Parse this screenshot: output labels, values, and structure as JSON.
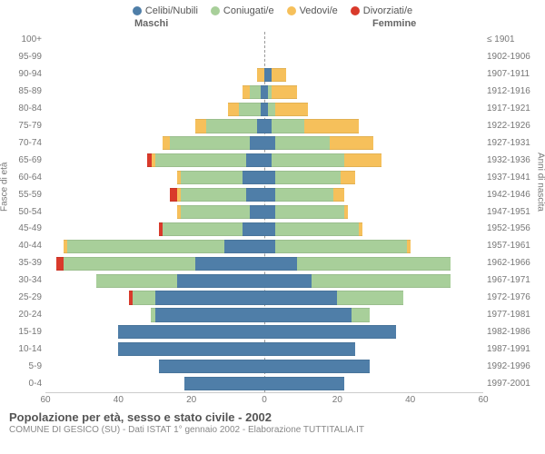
{
  "type": "population_pyramid",
  "legend": [
    {
      "label": "Celibi/Nubili",
      "color": "#4f7ea8"
    },
    {
      "label": "Coniugati/e",
      "color": "#a8cf9a"
    },
    {
      "label": "Vedovi/e",
      "color": "#f6c05b"
    },
    {
      "label": "Divorziati/e",
      "color": "#d93a2b"
    }
  ],
  "headers": {
    "male": "Maschi",
    "female": "Femmine"
  },
  "axis_labels": {
    "left": "Fasce di età",
    "right": "Anni di nascita"
  },
  "x_axis": {
    "max": 60,
    "ticks": [
      60,
      40,
      20,
      0,
      20,
      40,
      60
    ]
  },
  "footer": {
    "title": "Popolazione per età, sesso e stato civile - 2002",
    "subtitle": "COMUNE DI GESICO (SU) - Dati ISTAT 1° gennaio 2002 - Elaborazione TUTTITALIA.IT"
  },
  "style": {
    "background": "#ffffff",
    "grid_color": "#999999",
    "tick_color": "#777777",
    "label_fontsize": 10,
    "legend_fontsize": 11,
    "title_fontsize": 13,
    "bar_height_ratio": 0.8
  },
  "rows": [
    {
      "age": "100+",
      "birth": "≤ 1901",
      "m": {
        "cel": 0,
        "con": 0,
        "ved": 0,
        "div": 0
      },
      "f": {
        "cel": 0,
        "con": 0,
        "ved": 0,
        "div": 0
      }
    },
    {
      "age": "95-99",
      "birth": "1902-1906",
      "m": {
        "cel": 0,
        "con": 0,
        "ved": 0,
        "div": 0
      },
      "f": {
        "cel": 0,
        "con": 0,
        "ved": 0,
        "div": 0
      }
    },
    {
      "age": "90-94",
      "birth": "1907-1911",
      "m": {
        "cel": 0,
        "con": 0,
        "ved": 2,
        "div": 0
      },
      "f": {
        "cel": 2,
        "con": 0,
        "ved": 4,
        "div": 0
      }
    },
    {
      "age": "85-89",
      "birth": "1912-1916",
      "m": {
        "cel": 1,
        "con": 3,
        "ved": 2,
        "div": 0
      },
      "f": {
        "cel": 1,
        "con": 1,
        "ved": 7,
        "div": 0
      }
    },
    {
      "age": "80-84",
      "birth": "1917-1921",
      "m": {
        "cel": 1,
        "con": 6,
        "ved": 3,
        "div": 0
      },
      "f": {
        "cel": 1,
        "con": 2,
        "ved": 9,
        "div": 0
      }
    },
    {
      "age": "75-79",
      "birth": "1922-1926",
      "m": {
        "cel": 2,
        "con": 14,
        "ved": 3,
        "div": 0
      },
      "f": {
        "cel": 2,
        "con": 9,
        "ved": 15,
        "div": 0
      }
    },
    {
      "age": "70-74",
      "birth": "1927-1931",
      "m": {
        "cel": 4,
        "con": 22,
        "ved": 2,
        "div": 0
      },
      "f": {
        "cel": 3,
        "con": 15,
        "ved": 12,
        "div": 0
      }
    },
    {
      "age": "65-69",
      "birth": "1932-1936",
      "m": {
        "cel": 5,
        "con": 25,
        "ved": 1,
        "div": 1
      },
      "f": {
        "cel": 2,
        "con": 20,
        "ved": 10,
        "div": 0
      }
    },
    {
      "age": "60-64",
      "birth": "1937-1941",
      "m": {
        "cel": 6,
        "con": 17,
        "ved": 1,
        "div": 0
      },
      "f": {
        "cel": 3,
        "con": 18,
        "ved": 4,
        "div": 0
      }
    },
    {
      "age": "55-59",
      "birth": "1942-1946",
      "m": {
        "cel": 5,
        "con": 18,
        "ved": 1,
        "div": 2
      },
      "f": {
        "cel": 3,
        "con": 16,
        "ved": 3,
        "div": 0
      }
    },
    {
      "age": "50-54",
      "birth": "1947-1951",
      "m": {
        "cel": 4,
        "con": 19,
        "ved": 1,
        "div": 0
      },
      "f": {
        "cel": 3,
        "con": 19,
        "ved": 1,
        "div": 0
      }
    },
    {
      "age": "45-49",
      "birth": "1952-1956",
      "m": {
        "cel": 6,
        "con": 22,
        "ved": 0,
        "div": 1
      },
      "f": {
        "cel": 3,
        "con": 23,
        "ved": 1,
        "div": 0
      }
    },
    {
      "age": "40-44",
      "birth": "1957-1961",
      "m": {
        "cel": 11,
        "con": 43,
        "ved": 1,
        "div": 0
      },
      "f": {
        "cel": 3,
        "con": 36,
        "ved": 1,
        "div": 0
      }
    },
    {
      "age": "35-39",
      "birth": "1962-1966",
      "m": {
        "cel": 19,
        "con": 36,
        "ved": 0,
        "div": 2
      },
      "f": {
        "cel": 9,
        "con": 42,
        "ved": 0,
        "div": 0
      }
    },
    {
      "age": "30-34",
      "birth": "1967-1971",
      "m": {
        "cel": 24,
        "con": 22,
        "ved": 0,
        "div": 0
      },
      "f": {
        "cel": 13,
        "con": 38,
        "ved": 0,
        "div": 0
      }
    },
    {
      "age": "25-29",
      "birth": "1972-1976",
      "m": {
        "cel": 30,
        "con": 6,
        "ved": 0,
        "div": 1
      },
      "f": {
        "cel": 20,
        "con": 18,
        "ved": 0,
        "div": 0
      }
    },
    {
      "age": "20-24",
      "birth": "1977-1981",
      "m": {
        "cel": 30,
        "con": 1,
        "ved": 0,
        "div": 0
      },
      "f": {
        "cel": 24,
        "con": 5,
        "ved": 0,
        "div": 0
      }
    },
    {
      "age": "15-19",
      "birth": "1982-1986",
      "m": {
        "cel": 40,
        "con": 0,
        "ved": 0,
        "div": 0
      },
      "f": {
        "cel": 36,
        "con": 0,
        "ved": 0,
        "div": 0
      }
    },
    {
      "age": "10-14",
      "birth": "1987-1991",
      "m": {
        "cel": 40,
        "con": 0,
        "ved": 0,
        "div": 0
      },
      "f": {
        "cel": 25,
        "con": 0,
        "ved": 0,
        "div": 0
      }
    },
    {
      "age": "5-9",
      "birth": "1992-1996",
      "m": {
        "cel": 29,
        "con": 0,
        "ved": 0,
        "div": 0
      },
      "f": {
        "cel": 29,
        "con": 0,
        "ved": 0,
        "div": 0
      }
    },
    {
      "age": "0-4",
      "birth": "1997-2001",
      "m": {
        "cel": 22,
        "con": 0,
        "ved": 0,
        "div": 0
      },
      "f": {
        "cel": 22,
        "con": 0,
        "ved": 0,
        "div": 0
      }
    }
  ]
}
